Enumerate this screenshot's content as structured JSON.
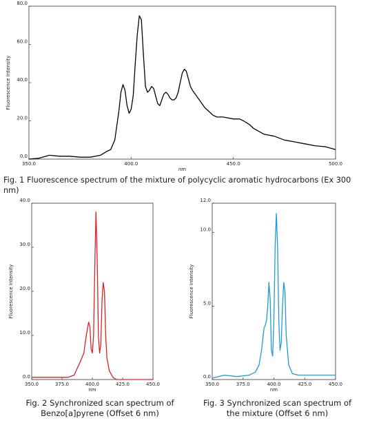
{
  "chart_data": [
    {
      "type": "line",
      "title": "Fig. 1 Fluorescence spectrum of the mixture of polycyclic aromatic hydrocarbons (Ex 300 nm)",
      "xlabel": "nm",
      "ylabel": "Fluorescence Intensity",
      "color": "#000000",
      "x": [
        350,
        355,
        360,
        365,
        370,
        375,
        380,
        385,
        388,
        390,
        392,
        394,
        395,
        396,
        397,
        398,
        399,
        400,
        401,
        402,
        403,
        404,
        405,
        406,
        407,
        408,
        409,
        410,
        411,
        412,
        413,
        414,
        415,
        416,
        417,
        418,
        419,
        420,
        421,
        422,
        423,
        424,
        425,
        426,
        427,
        428,
        429,
        430,
        432,
        434,
        436,
        438,
        440,
        442,
        445,
        450,
        453,
        455,
        458,
        460,
        465,
        470,
        475,
        480,
        485,
        490,
        495,
        500
      ],
      "values": [
        0,
        0.5,
        2,
        1.5,
        1.5,
        1,
        1,
        2,
        4,
        5,
        10,
        25,
        35,
        39,
        36,
        28,
        24,
        26,
        33,
        50,
        65,
        75,
        73,
        55,
        38,
        35,
        36,
        38,
        37,
        33,
        29,
        28,
        31,
        34,
        35,
        34,
        32,
        31,
        31,
        32,
        35,
        40,
        45,
        47,
        46,
        42,
        38,
        36,
        33,
        30,
        27,
        25,
        23,
        22,
        22,
        21,
        21,
        20,
        18,
        16,
        13,
        12,
        10,
        9,
        8,
        7,
        6.5,
        5
      ],
      "xlim": [
        350,
        500
      ],
      "xticks": [
        {
          "value": 350,
          "label": "350.0"
        },
        {
          "value": 400,
          "label": "400.0"
        },
        {
          "value": 450,
          "label": "450.0"
        },
        {
          "value": 500,
          "label": "500.0"
        }
      ],
      "ylim": [
        0,
        80
      ],
      "yticks": [
        {
          "value": 0,
          "label": "0.0"
        },
        {
          "value": 20,
          "label": "20.0"
        },
        {
          "value": 40,
          "label": "40.0"
        },
        {
          "value": 60,
          "label": "60.0"
        },
        {
          "value": 80,
          "label": "80.0"
        }
      ]
    },
    {
      "type": "line",
      "title": "Fig. 2 Synchronized scan spectrum of Benzo[a]pyrene (Offset 6 nm)",
      "xlabel": "nm",
      "ylabel": "Fluorescence Intensity",
      "color": "#e02020",
      "x": [
        350,
        360,
        370,
        380,
        385,
        390,
        393,
        395,
        397,
        398,
        399,
        400,
        401,
        402,
        403,
        404,
        405,
        406,
        407,
        408,
        409,
        410,
        411,
        412,
        414,
        417,
        420,
        430,
        440,
        450
      ],
      "values": [
        0.5,
        0.5,
        0.5,
        0.5,
        1,
        4,
        6,
        10,
        13,
        12,
        7,
        6,
        10,
        25,
        38,
        28,
        10,
        6,
        8,
        18,
        22,
        20,
        10,
        5,
        2,
        0.5,
        0,
        0,
        0,
        0
      ],
      "xlim": [
        350,
        450
      ],
      "xticks": [
        {
          "value": 350,
          "label": "350.0"
        },
        {
          "value": 375,
          "label": "375.0"
        },
        {
          "value": 400,
          "label": "400.0"
        },
        {
          "value": 425,
          "label": "425.0"
        },
        {
          "value": 450,
          "label": "450.0"
        }
      ],
      "ylim": [
        0,
        40
      ],
      "yticks": [
        {
          "value": 0,
          "label": "0.0"
        },
        {
          "value": 10,
          "label": "10.0"
        },
        {
          "value": 20,
          "label": "20.0"
        },
        {
          "value": 30,
          "label": "30.0"
        },
        {
          "value": 40,
          "label": "40.0"
        }
      ]
    },
    {
      "type": "line",
      "title": "Fig. 3 Synchronized scan spectrum of the mixture (Offset 6 nm)",
      "xlabel": "nm",
      "ylabel": "Fluorescence Intensity",
      "color": "#1a9bd7",
      "x": [
        350,
        360,
        370,
        380,
        385,
        388,
        390,
        392,
        393,
        394,
        395,
        396,
        397,
        398,
        399,
        400,
        401,
        402,
        403,
        404,
        405,
        406,
        407,
        408,
        409,
        410,
        412,
        415,
        420,
        430,
        440,
        450
      ],
      "values": [
        0.1,
        0.3,
        0.2,
        0.3,
        0.5,
        1,
        2,
        3.5,
        3.7,
        4,
        5,
        6.6,
        5.5,
        2,
        1.6,
        4,
        9,
        11.3,
        9,
        4,
        2,
        2.5,
        5,
        6.6,
        6,
        3,
        1,
        0.4,
        0.3,
        0.3,
        0.3,
        0.3
      ],
      "xlim": [
        350,
        450
      ],
      "xticks": [
        {
          "value": 350,
          "label": "350.0"
        },
        {
          "value": 375,
          "label": "375.0"
        },
        {
          "value": 400,
          "label": "400.0"
        },
        {
          "value": 425,
          "label": "425.0"
        },
        {
          "value": 450,
          "label": "450.0"
        }
      ],
      "ylim": [
        0,
        12
      ],
      "yticks": [
        {
          "value": 0,
          "label": "0.0"
        },
        {
          "value": 5,
          "label": "5.0"
        },
        {
          "value": 10,
          "label": "10.0"
        },
        {
          "value": 12,
          "label": "12.0"
        }
      ]
    }
  ]
}
